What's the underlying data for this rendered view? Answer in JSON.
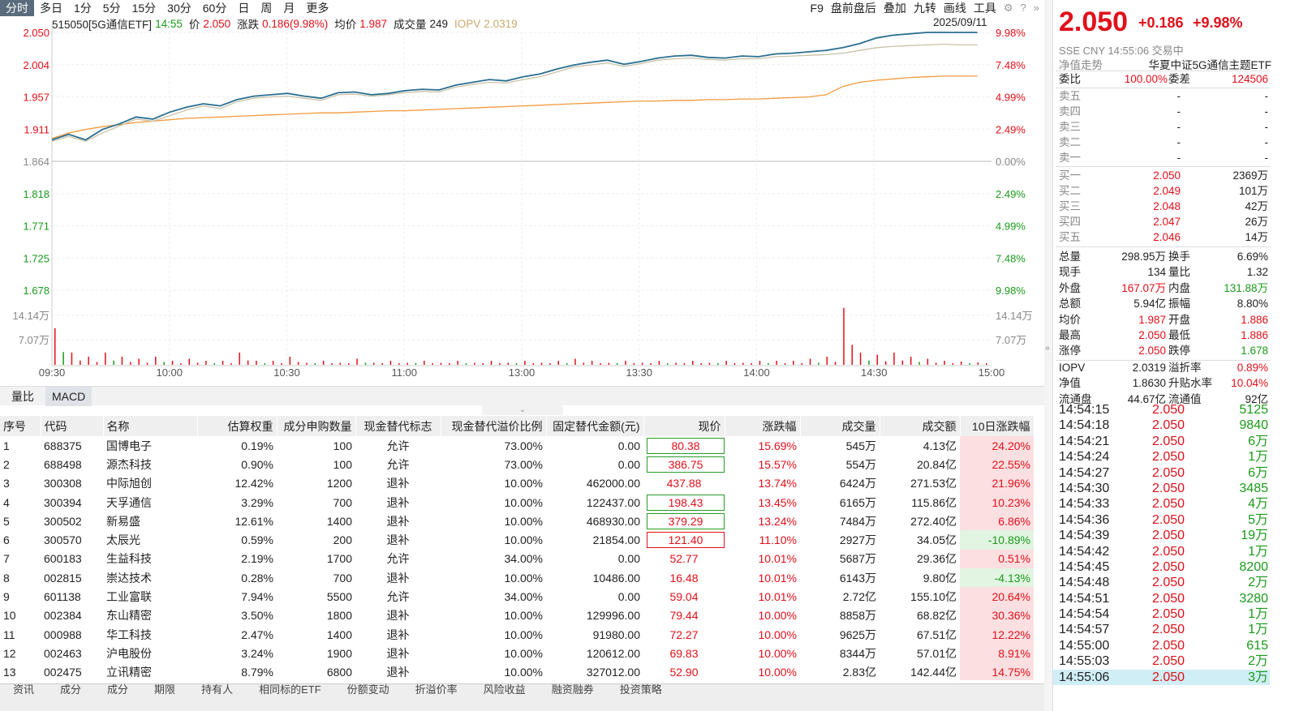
{
  "toolbar": {
    "periods": [
      "分时",
      "多日",
      "1分",
      "5分",
      "15分",
      "30分",
      "60分",
      "日",
      "周",
      "月",
      "更多"
    ],
    "tools": [
      "F9",
      "盘前盘后",
      "叠加",
      "九转",
      "画线",
      "工具"
    ]
  },
  "info": {
    "code_name": "515050[5G通信ETF]",
    "time": "14:55",
    "price_label": "价",
    "price": "2.050",
    "chg_label": "涨跌",
    "chg": "0.186(9.98%)",
    "avg_label": "均价",
    "avg": "1.987",
    "vol_label": "成交量",
    "vol": "249",
    "iopv_label": "IOPV",
    "iopv": "2.0319",
    "date": "2025/09/11"
  },
  "chart_data": {
    "type": "line",
    "title": "",
    "price_ticks": [
      "2.050",
      "2.004",
      "1.957",
      "1.911",
      "1.864",
      "1.818",
      "1.771",
      "1.725",
      "1.678"
    ],
    "pct_ticks": [
      "9.98%",
      "7.48%",
      "4.99%",
      "2.49%",
      "0.00%",
      "2.49%",
      "4.99%",
      "7.48%",
      "9.98%"
    ],
    "vol_ticks": [
      "14.14万",
      "7.07万"
    ],
    "time_ticks": [
      "09:30",
      "10:00",
      "10:30",
      "11:00",
      "13:00",
      "13:30",
      "14:00",
      "14:30",
      "15:00"
    ],
    "ylim": [
      1.678,
      2.05
    ],
    "prev_close": 1.864,
    "series": [
      {
        "name": "价",
        "color": "#2a6f91",
        "values": [
          1.895,
          1.903,
          1.895,
          1.91,
          1.918,
          1.928,
          1.925,
          1.935,
          1.942,
          1.947,
          1.944,
          1.953,
          1.958,
          1.96,
          1.962,
          1.958,
          1.955,
          1.963,
          1.964,
          1.96,
          1.962,
          1.966,
          1.968,
          1.967,
          1.974,
          1.978,
          1.982,
          1.98,
          1.986,
          1.99,
          1.997,
          2.003,
          2.007,
          2.01,
          2.004,
          2.008,
          2.013,
          2.016,
          2.017,
          2.014,
          2.013,
          2.016,
          2.015,
          2.019,
          2.02,
          2.022,
          2.024,
          2.028,
          2.034,
          2.042,
          2.046,
          2.048,
          2.05,
          2.05,
          2.05,
          2.05
        ]
      },
      {
        "name": "IOPV",
        "color": "#c9c2a8",
        "values": [
          1.893,
          1.9,
          1.893,
          1.905,
          1.915,
          1.925,
          1.922,
          1.93,
          1.938,
          1.944,
          1.94,
          1.95,
          1.955,
          1.957,
          1.958,
          1.955,
          1.952,
          1.96,
          1.961,
          1.958,
          1.96,
          1.963,
          1.965,
          1.964,
          1.971,
          1.975,
          1.978,
          1.977,
          1.982,
          1.986,
          1.993,
          2.0,
          2.003,
          2.006,
          2.001,
          2.005,
          2.01,
          2.012,
          2.013,
          2.011,
          2.01,
          2.012,
          2.012,
          2.015,
          2.016,
          2.017,
          2.018,
          2.02,
          2.024,
          2.028,
          2.03,
          2.031,
          2.032,
          2.033,
          2.032,
          2.032
        ]
      },
      {
        "name": "均价",
        "color": "#f29a3b",
        "values": [
          1.897,
          1.905,
          1.91,
          1.914,
          1.917,
          1.92,
          1.922,
          1.924,
          1.926,
          1.927,
          1.928,
          1.929,
          1.93,
          1.931,
          1.932,
          1.933,
          1.934,
          1.934,
          1.935,
          1.936,
          1.937,
          1.937,
          1.938,
          1.939,
          1.94,
          1.941,
          1.942,
          1.943,
          1.944,
          1.945,
          1.946,
          1.947,
          1.948,
          1.949,
          1.95,
          1.951,
          1.951,
          1.952,
          1.952,
          1.953,
          1.953,
          1.954,
          1.954,
          1.955,
          1.956,
          1.957,
          1.96,
          1.972,
          1.978,
          1.981,
          1.983,
          1.985,
          1.986,
          1.987,
          1.987,
          1.987
        ]
      }
    ],
    "volume": [
      9,
      3,
      2,
      3,
      2,
      1.5,
      2,
      1,
      1.5,
      1,
      1,
      3,
      1,
      1,
      2,
      0.5,
      1,
      0.5,
      1.5,
      0.5,
      1,
      0.5,
      1,
      0.5,
      1,
      0.5,
      1,
      0.5,
      1,
      0.5,
      1,
      1.5,
      1,
      0.5,
      1,
      0.5,
      1,
      0.5,
      1,
      0.5,
      1,
      0.5,
      1,
      1,
      1,
      1.5,
      2,
      14,
      3,
      2.5,
      3,
      2,
      1.5,
      1,
      0.8,
      0.6
    ],
    "vol_max": 14.14
  },
  "subtabs": [
    "量比",
    "MACD"
  ],
  "table": {
    "headers": [
      "序号",
      "代码",
      "名称",
      "估算权重",
      "成分申购数量",
      "现金替代标志",
      "现金替代溢价比例",
      "固定替代金额(元)",
      "现价",
      "涨跌幅",
      "成交量",
      "成交额",
      "10日涨跌幅"
    ],
    "rows": [
      [
        "1",
        "688375",
        "国博电子",
        "0.19%",
        "100",
        "允许",
        "73.00%",
        "0.00",
        "80.38",
        "15.69%",
        "545万",
        "4.13亿",
        "24.20%"
      ],
      [
        "2",
        "688498",
        "源杰科技",
        "0.90%",
        "100",
        "允许",
        "73.00%",
        "0.00",
        "386.75",
        "15.57%",
        "554万",
        "20.84亿",
        "22.55%"
      ],
      [
        "3",
        "300308",
        "中际旭创",
        "12.42%",
        "1200",
        "退补",
        "10.00%",
        "462000.00",
        "437.88",
        "13.74%",
        "6424万",
        "271.53亿",
        "21.96%"
      ],
      [
        "4",
        "300394",
        "天孚通信",
        "3.29%",
        "700",
        "退补",
        "10.00%",
        "122437.00",
        "198.43",
        "13.45%",
        "6165万",
        "115.86亿",
        "10.23%"
      ],
      [
        "5",
        "300502",
        "新易盛",
        "12.61%",
        "1400",
        "退补",
        "10.00%",
        "468930.00",
        "379.29",
        "13.24%",
        "7484万",
        "272.40亿",
        "6.86%"
      ],
      [
        "6",
        "300570",
        "太辰光",
        "0.59%",
        "200",
        "退补",
        "10.00%",
        "21854.00",
        "121.40",
        "11.10%",
        "2927万",
        "34.05亿",
        "-10.89%"
      ],
      [
        "7",
        "600183",
        "生益科技",
        "2.19%",
        "1700",
        "允许",
        "34.00%",
        "0.00",
        "52.77",
        "10.01%",
        "5687万",
        "29.36亿",
        "0.51%"
      ],
      [
        "8",
        "002815",
        "崇达技术",
        "0.28%",
        "700",
        "退补",
        "10.00%",
        "10486.00",
        "16.48",
        "10.01%",
        "6143万",
        "9.80亿",
        "-4.13%"
      ],
      [
        "9",
        "601138",
        "工业富联",
        "7.94%",
        "5500",
        "允许",
        "34.00%",
        "0.00",
        "59.04",
        "10.01%",
        "2.72亿",
        "155.10亿",
        "20.64%"
      ],
      [
        "10",
        "002384",
        "东山精密",
        "3.50%",
        "1800",
        "退补",
        "10.00%",
        "129996.00",
        "79.44",
        "10.00%",
        "8858万",
        "68.82亿",
        "30.36%"
      ],
      [
        "11",
        "000988",
        "华工科技",
        "2.47%",
        "1400",
        "退补",
        "10.00%",
        "91980.00",
        "72.27",
        "10.00%",
        "9625万",
        "67.51亿",
        "12.22%"
      ],
      [
        "12",
        "002463",
        "沪电股份",
        "3.24%",
        "1900",
        "退补",
        "10.00%",
        "120612.00",
        "69.83",
        "10.00%",
        "8344万",
        "57.01亿",
        "8.91%"
      ],
      [
        "13",
        "002475",
        "立讯精密",
        "8.79%",
        "6800",
        "退补",
        "10.00%",
        "327012.00",
        "52.90",
        "10.00%",
        "2.83亿",
        "142.44亿",
        "14.75%"
      ]
    ],
    "boxed": [
      "green",
      "green",
      "none",
      "green",
      "green",
      "red",
      "none",
      "none",
      "none",
      "none",
      "none",
      "none",
      "none"
    ]
  },
  "bottomtabs": [
    "资讯",
    "成分",
    "成分",
    "期限",
    "持有人",
    "相同标的ETF",
    "份额变动",
    "折溢价率",
    "风险收益",
    "融资融券",
    "投资策略"
  ],
  "right": {
    "price": "2.050",
    "chg": "+0.186",
    "pct": "+9.98%",
    "market": "SSE  CNY  14:55:06  交易中",
    "nav_label": "净值走势",
    "fund_name": "华夏中证5G通信主题ETF",
    "weibi_label": "委比",
    "weibi": "100.00%",
    "weicha_label": "委差",
    "weicha": "124506",
    "asks": [
      {
        "label": "卖五",
        "price": "-",
        "vol": "-"
      },
      {
        "label": "卖四",
        "price": "-",
        "vol": "-"
      },
      {
        "label": "卖三",
        "price": "-",
        "vol": "-"
      },
      {
        "label": "卖二",
        "price": "-",
        "vol": "-"
      },
      {
        "label": "卖一",
        "price": "-",
        "vol": "-"
      }
    ],
    "bids": [
      {
        "label": "买一",
        "price": "2.050",
        "vol": "2369万"
      },
      {
        "label": "买二",
        "price": "2.049",
        "vol": "101万"
      },
      {
        "label": "买三",
        "price": "2.048",
        "vol": "42万"
      },
      {
        "label": "买四",
        "price": "2.047",
        "vol": "26万"
      },
      {
        "label": "买五",
        "price": "2.046",
        "vol": "14万"
      }
    ],
    "stats": [
      [
        "总量",
        "298.95万",
        "换手",
        "6.69%",
        "n",
        "n"
      ],
      [
        "现手",
        "134",
        "量比",
        "1.32",
        "n",
        "n"
      ],
      [
        "外盘",
        "167.07万",
        "内盘",
        "131.88万",
        "up",
        "down"
      ],
      [
        "总额",
        "5.94亿",
        "振幅",
        "8.80%",
        "n",
        "n"
      ],
      [
        "均价",
        "1.987",
        "开盘",
        "1.886",
        "up",
        "up"
      ],
      [
        "最高",
        "2.050",
        "最低",
        "1.886",
        "up",
        "up"
      ],
      [
        "涨停",
        "2.050",
        "跌停",
        "1.678",
        "up",
        "down"
      ],
      [
        "IOPV",
        "2.0319",
        "溢折率",
        "0.89%",
        "n",
        "up"
      ],
      [
        "净值",
        "1.8630",
        "升贴水率",
        "10.04%",
        "n",
        "up"
      ],
      [
        "流通盘",
        "44.67亿",
        "流通值",
        "92亿",
        "n",
        "n"
      ]
    ],
    "ticks": [
      [
        "14:54:15",
        "2.050",
        "5125"
      ],
      [
        "14:54:18",
        "2.050",
        "9840"
      ],
      [
        "14:54:21",
        "2.050",
        "6万"
      ],
      [
        "14:54:24",
        "2.050",
        "1万"
      ],
      [
        "14:54:27",
        "2.050",
        "6万"
      ],
      [
        "14:54:30",
        "2.050",
        "3485"
      ],
      [
        "14:54:33",
        "2.050",
        "4万"
      ],
      [
        "14:54:36",
        "2.050",
        "5万"
      ],
      [
        "14:54:39",
        "2.050",
        "19万"
      ],
      [
        "14:54:42",
        "2.050",
        "1万"
      ],
      [
        "14:54:45",
        "2.050",
        "8200"
      ],
      [
        "14:54:48",
        "2.050",
        "2万"
      ],
      [
        "14:54:51",
        "2.050",
        "3280"
      ],
      [
        "14:54:54",
        "2.050",
        "1万"
      ],
      [
        "14:54:57",
        "2.050",
        "1万"
      ],
      [
        "14:55:00",
        "2.050",
        "615"
      ],
      [
        "14:55:03",
        "2.050",
        "2万"
      ],
      [
        "14:55:06",
        "2.050",
        "3万"
      ]
    ]
  }
}
